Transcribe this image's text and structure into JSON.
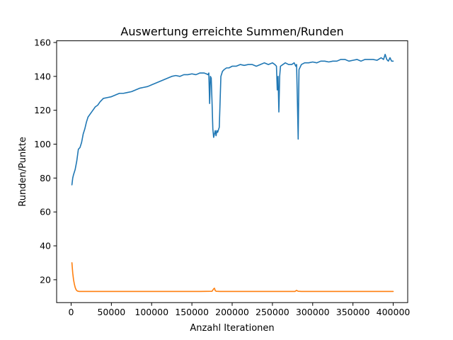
{
  "chart_data": {
    "type": "line",
    "title": "Auswertung erreichte Summen/Runden",
    "xlabel": "Anzahl Iterationen",
    "ylabel": "Runden/Punkte",
    "xlim": [
      -18000,
      418000
    ],
    "ylim": [
      6.5,
      161
    ],
    "xticks": [
      0,
      50000,
      100000,
      150000,
      200000,
      250000,
      300000,
      350000,
      400000
    ],
    "yticks": [
      20,
      40,
      60,
      80,
      100,
      120,
      140,
      160
    ],
    "grid": false,
    "legend": "none",
    "series": [
      {
        "color": "#1f77b4",
        "x": [
          1000,
          2000,
          3000,
          5000,
          7000,
          9000,
          11000,
          13000,
          15000,
          17000,
          19000,
          21000,
          24000,
          27000,
          30000,
          33000,
          36000,
          40000,
          45000,
          50000,
          55000,
          60000,
          65000,
          70000,
          75000,
          80000,
          85000,
          90000,
          95000,
          100000,
          105000,
          110000,
          115000,
          120000,
          125000,
          130000,
          135000,
          140000,
          145000,
          150000,
          155000,
          160000,
          165000,
          168000,
          170000,
          171000,
          172000,
          173000,
          174000,
          175000,
          176000,
          177000,
          179000,
          180000,
          181000,
          182000,
          184000,
          186000,
          188000,
          190000,
          193000,
          196000,
          200000,
          205000,
          210000,
          215000,
          220000,
          225000,
          230000,
          235000,
          240000,
          245000,
          250000,
          253000,
          255000,
          256000,
          257000,
          258000,
          259000,
          260000,
          263000,
          266000,
          270000,
          274000,
          277000,
          279000,
          280000,
          281000,
          282000,
          283000,
          286000,
          290000,
          295000,
          300000,
          305000,
          310000,
          315000,
          320000,
          325000,
          330000,
          335000,
          340000,
          345000,
          350000,
          355000,
          360000,
          365000,
          370000,
          375000,
          380000,
          385000,
          388000,
          390000,
          392000,
          394000,
          396000,
          398000,
          400000
        ],
        "values": [
          76,
          80,
          82,
          85,
          90,
          97,
          98,
          101,
          106,
          109,
          113,
          116,
          118,
          120,
          122,
          123,
          125,
          127,
          127.5,
          128,
          129,
          130,
          130,
          130.5,
          131,
          132,
          133,
          133.5,
          134,
          135,
          136,
          137,
          138,
          139,
          140,
          140.5,
          140,
          141,
          141,
          141.5,
          141,
          142,
          142,
          141.5,
          141,
          142,
          124,
          140,
          139,
          125,
          109,
          104,
          108,
          105,
          108,
          107,
          110,
          140,
          143,
          144,
          145,
          145,
          146,
          146,
          147,
          146.5,
          147,
          147,
          146,
          147,
          148,
          147,
          148,
          147,
          146,
          132,
          140,
          119,
          140,
          146,
          147,
          148,
          147,
          147,
          148,
          146,
          147,
          126,
          103,
          144,
          147,
          148,
          148,
          148.5,
          148,
          149,
          149,
          148.5,
          149,
          149,
          150,
          150,
          149,
          149.5,
          150,
          149,
          150,
          150,
          150,
          149.5,
          151,
          150,
          153,
          150,
          149,
          151,
          149,
          149
        ]
      },
      {
        "color": "#ff7f0e",
        "x": [
          1000,
          2000,
          3000,
          4000,
          5000,
          6000,
          7000,
          8000,
          10000,
          14000,
          20000,
          40000,
          80000,
          120000,
          160000,
          175000,
          177000,
          178000,
          179000,
          180000,
          185000,
          200000,
          240000,
          278000,
          280000,
          282000,
          286000,
          320000,
          360000,
          400000
        ],
        "values": [
          30,
          24,
          20,
          17.5,
          15.5,
          14.3,
          13.6,
          13.3,
          13.1,
          13.1,
          13.1,
          13.1,
          13.1,
          13.1,
          13.1,
          13.2,
          14.6,
          15,
          13.6,
          13.2,
          13.1,
          13.1,
          13.1,
          13.1,
          13.7,
          13.2,
          13.1,
          13.1,
          13.1,
          13.1
        ]
      }
    ]
  }
}
